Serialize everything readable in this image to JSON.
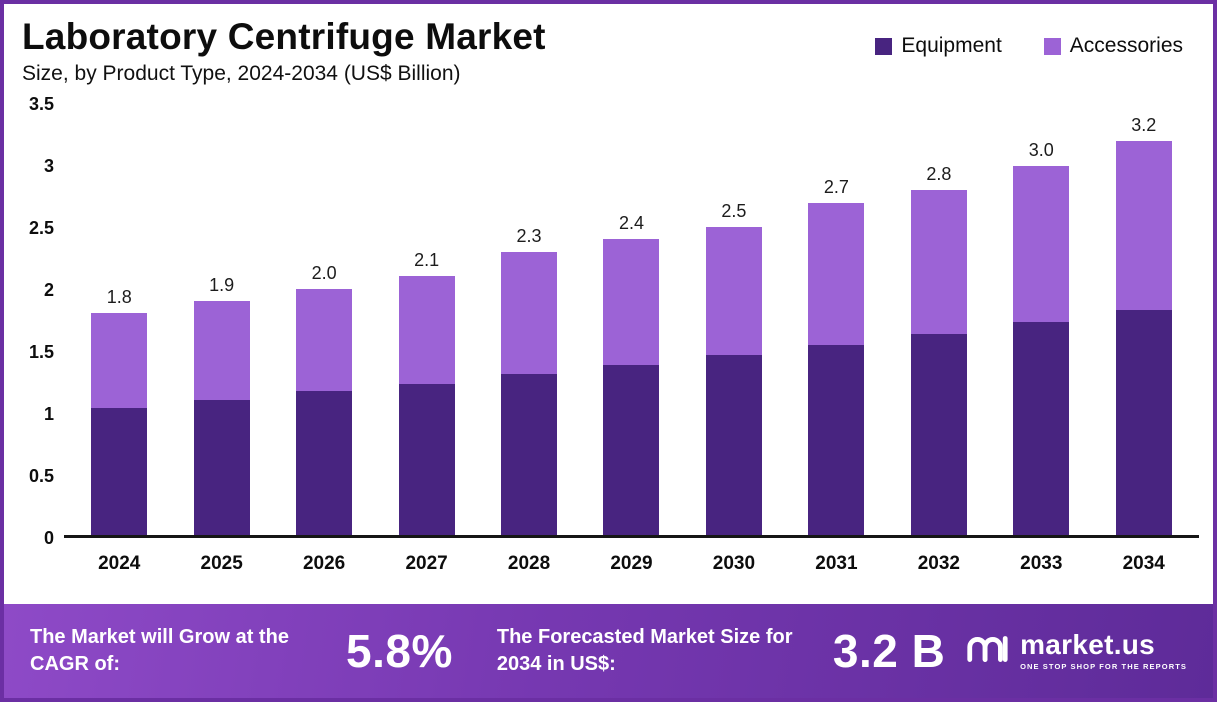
{
  "header": {
    "title": "Laboratory Centrifuge Market",
    "subtitle": "Size, by Product Type, 2024-2034 (US$ Billion)"
  },
  "legend": [
    {
      "label": "Equipment",
      "color": "#482480"
    },
    {
      "label": "Accessories",
      "color": "#9c63d6"
    }
  ],
  "chart_data": {
    "type": "bar",
    "stacked": true,
    "title": "Laboratory Centrifuge Market Size, by Product Type, 2024-2034 (US$ Billion)",
    "categories": [
      "2024",
      "2025",
      "2026",
      "2027",
      "2028",
      "2029",
      "2030",
      "2031",
      "2032",
      "2033",
      "2034"
    ],
    "series": [
      {
        "name": "Equipment",
        "color": "#482480",
        "values": [
          1.03,
          1.1,
          1.17,
          1.23,
          1.31,
          1.38,
          1.46,
          1.54,
          1.63,
          1.73,
          1.83
        ]
      },
      {
        "name": "Accessories",
        "color": "#9c63d6",
        "values": [
          0.77,
          0.8,
          0.83,
          0.87,
          0.99,
          1.02,
          1.04,
          1.16,
          1.17,
          1.27,
          1.37
        ]
      }
    ],
    "totals": [
      1.8,
      1.9,
      2.0,
      2.1,
      2.3,
      2.4,
      2.5,
      2.7,
      2.8,
      3.0,
      3.2
    ],
    "total_labels": [
      "1.8",
      "1.9",
      "2.0",
      "2.1",
      "2.3",
      "2.4",
      "2.5",
      "2.7",
      "2.8",
      "3.0",
      "3.2"
    ],
    "xlabel": "",
    "ylabel": "",
    "ylim": [
      0,
      3.5
    ],
    "yticks": [
      "3.5",
      "3",
      "2.5",
      "2",
      "1.5",
      "1",
      "0.5",
      "0"
    ],
    "grid": false,
    "legend_position": "top-right"
  },
  "banner": {
    "cagr_label": "The Market will Grow at the CAGR of:",
    "cagr_value": "5.8%",
    "forecast_label": "The Forecasted Market Size for 2034 in US$:",
    "forecast_value": "3.2 B",
    "brand_name": "market.us",
    "brand_tagline": "ONE STOP SHOP FOR THE REPORTS"
  },
  "colors": {
    "equipment": "#482480",
    "accessories": "#9c63d6",
    "frame_border": "#6b2fa3",
    "banner_gradient_from": "#8e4ac7",
    "banner_gradient_to": "#5e2b99"
  }
}
